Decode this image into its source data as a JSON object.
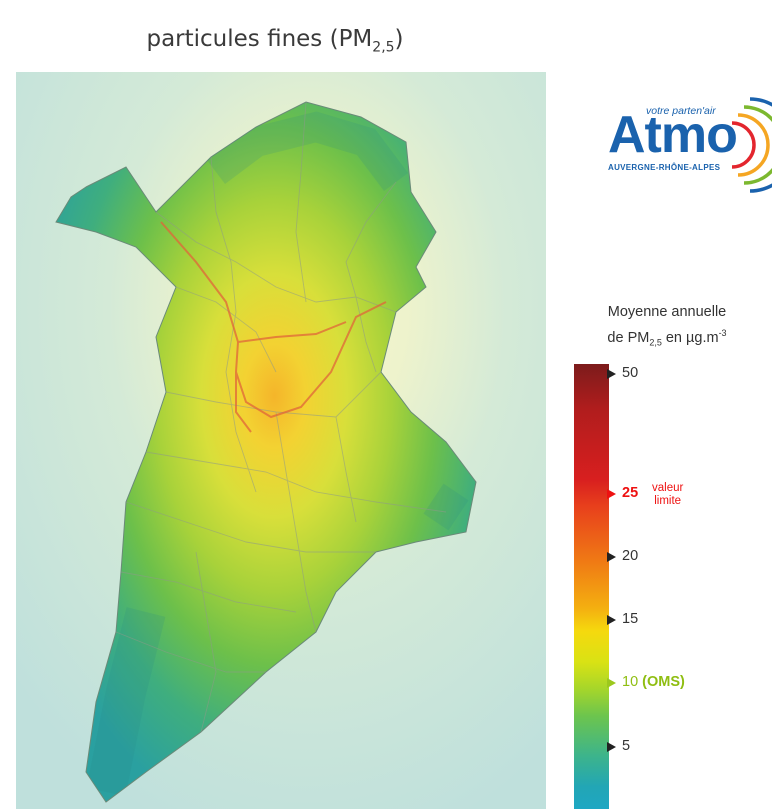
{
  "title": {
    "text": "particules fines (PM",
    "sub": "2,5",
    "close": ")"
  },
  "logo": {
    "word": "Atmo",
    "tagline": "votre parten'air",
    "region": "AUVERGNE-RHÔNE-ALPES",
    "colors": {
      "primary": "#1a62ad",
      "arc1": "#e3262e",
      "arc2": "#f5a623",
      "arc3": "#7cb82f",
      "arc4": "#1a62ad"
    }
  },
  "legend": {
    "line1": "Moyenne annuelle",
    "line2_pre": "de PM",
    "line2_sub": "2,5",
    "line2_mid": " en µg.m",
    "line2_sup": "-3",
    "ticks": [
      {
        "value": "50"
      },
      {
        "value": "25",
        "note1": "valeur",
        "note2": "limite"
      },
      {
        "value": "20"
      },
      {
        "value": "15"
      },
      {
        "value": "10",
        "note": "(OMS)"
      },
      {
        "value": "5"
      }
    ]
  },
  "colors": {
    "scale_top": "#7c1b1b",
    "limit_red": "#e11111",
    "who_green": "#8fbe12",
    "scale_bottom": "#1ea7c3",
    "background_low": "#bfe0dc",
    "hotspot": "#f3b52a"
  }
}
